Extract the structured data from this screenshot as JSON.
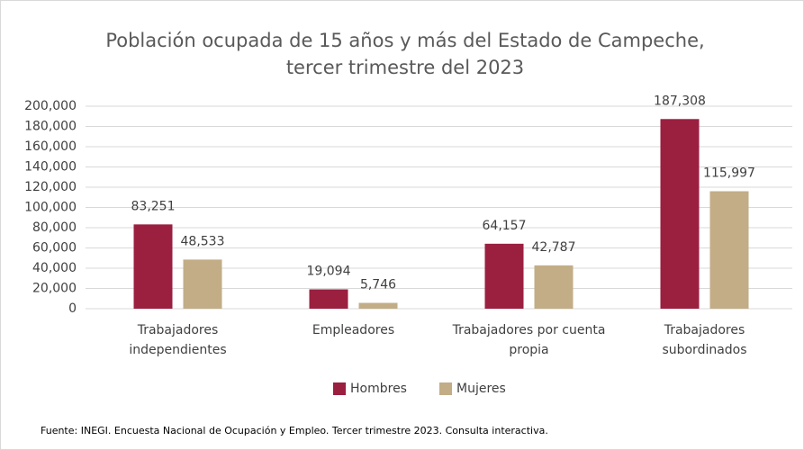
{
  "chart_data": {
    "type": "bar",
    "title": "Población ocupada de 15 años y más del Estado de Campeche, tercer trimestre del 2023",
    "categories": [
      "Trabajadores independientes",
      "Empleadores",
      "Trabajadores por cuenta propia",
      "Trabajadores subordinados"
    ],
    "series": [
      {
        "name": "Hombres",
        "color": "#9b1f3f",
        "values": [
          83251,
          19094,
          64157,
          187308
        ],
        "value_labels": [
          "83,251",
          "19,094",
          "64,157",
          "187,308"
        ]
      },
      {
        "name": "Mujeres",
        "color": "#c2ad87",
        "values": [
          48533,
          5746,
          42787,
          115997
        ],
        "value_labels": [
          "48,533",
          "5,746",
          "42,787",
          "115,997"
        ]
      }
    ],
    "ylim": [
      0,
      200000
    ],
    "yticks": [
      0,
      {
        "value": 20000,
        "label": "20,000"
      },
      {
        "value": 40000,
        "label": "40,000"
      },
      {
        "value": 60000,
        "label": "60,000"
      },
      {
        "value": 80000,
        "label": "80,000"
      },
      {
        "value": 100000,
        "label": "100,000"
      },
      {
        "value": 120000,
        "label": "120,000"
      },
      {
        "value": 140000,
        "label": "140,000"
      },
      {
        "value": 160000,
        "label": "160,000"
      },
      {
        "value": 180000,
        "label": "180,000"
      },
      {
        "value": 200000,
        "label": "200,000"
      }
    ],
    "grid": true,
    "legend": "bottom",
    "source": "Fuente: INEGI. Encuesta Nacional de Ocupación y Empleo. Tercer trimestre 2023. Consulta interactiva."
  }
}
